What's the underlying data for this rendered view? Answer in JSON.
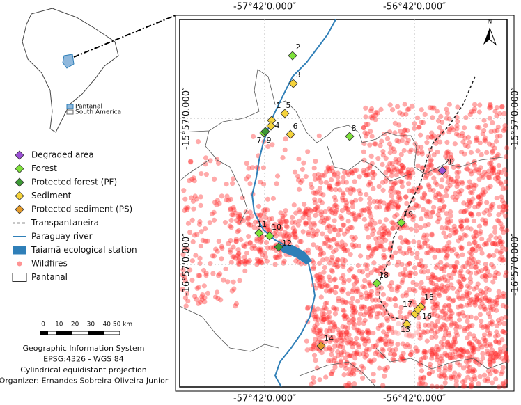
{
  "inset": {
    "legend": [
      "Pantanal",
      "South America"
    ]
  },
  "coordinates": {
    "longitudes": [
      "-57°42'0.000″",
      "-56°42'0.000″"
    ],
    "latitudes": [
      "-15°57'0.000″",
      "-16°57'0.000″"
    ]
  },
  "north": "N",
  "legend": [
    {
      "label": "Degraded area",
      "color": "#9b4fd6"
    },
    {
      "label": "Forest",
      "color": "#7ee23a"
    },
    {
      "label": "Protected forest (PF)",
      "color": "#3c9a35"
    },
    {
      "label": "Sediment",
      "color": "#f5d33a"
    },
    {
      "label": "Protected sediment (PS)",
      "color": "#e39a2a"
    },
    {
      "label": "Transpantaneira",
      "color": "#222222"
    },
    {
      "label": "Paraguay river",
      "color": "#2f7fb8"
    },
    {
      "label": "Taiamã ecological station",
      "color": "#2f7fb8"
    },
    {
      "label": "Wildfires",
      "color": "#ff2a2a"
    },
    {
      "label": "Pantanal",
      "color": "#ffffff"
    }
  ],
  "scale": [
    "0",
    "10",
    "20",
    "30",
    "40",
    "50 km"
  ],
  "credits": [
    "Geographic Information System",
    "EPSG:4326 - WGS 84",
    "Cylindrical equidistant projection",
    "Organizer: Ernandes Sobreira Oliveira Junior"
  ],
  "points": [
    {
      "label": "1",
      "color": "#f5d33a"
    },
    {
      "label": "2",
      "color": "#7ee23a"
    },
    {
      "label": "3",
      "color": "#f5d33a"
    },
    {
      "label": "4",
      "color": "#f5d33a"
    },
    {
      "label": "5",
      "color": "#f5d33a"
    },
    {
      "label": "6",
      "color": "#f5d33a"
    },
    {
      "label": "7",
      "color": "#7ee23a"
    },
    {
      "label": "8",
      "color": "#7ee23a"
    },
    {
      "label": "9",
      "color": "#3c9a35"
    },
    {
      "label": "10",
      "color": "#7ee23a"
    },
    {
      "label": "11",
      "color": "#7ee23a"
    },
    {
      "label": "12",
      "color": "#3c9a35"
    },
    {
      "label": "13",
      "color": "#f5d33a"
    },
    {
      "label": "14",
      "color": "#e39a2a"
    },
    {
      "label": "15",
      "color": "#f5d33a"
    },
    {
      "label": "16",
      "color": "#f5d33a"
    },
    {
      "label": "17",
      "color": "#f5d33a"
    },
    {
      "label": "18",
      "color": "#7ee23a"
    },
    {
      "label": "19",
      "color": "#7ee23a"
    },
    {
      "label": "20",
      "color": "#9b4fd6"
    }
  ]
}
